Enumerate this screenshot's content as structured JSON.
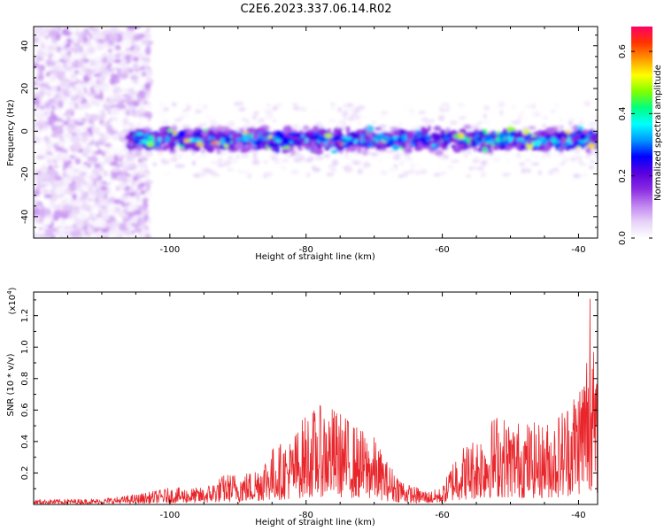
{
  "title": "C2E6.2023.337.06.14.R02",
  "chart_data": [
    {
      "type": "heatmap",
      "xlabel": "Height of straight line (km)",
      "ylabel": "Frequency (Hz)",
      "xlim": [
        -120,
        -37.2
      ],
      "ylim": [
        -50,
        49
      ],
      "xticks": [
        -100,
        -80,
        -60,
        -40
      ],
      "xtick_labels": [
        "-100",
        "-80",
        "-60",
        "-40"
      ],
      "yticks": [
        -40,
        -20,
        0,
        20,
        40
      ],
      "ytick_labels": [
        "-40",
        "-20",
        "0",
        "20",
        "40"
      ],
      "band_center_hz": -4,
      "band_halfwidth_hz": 7,
      "band_start_km": -106,
      "noise_region_km": [
        -120,
        -103
      ],
      "colorbar": {
        "label": "Normalized spectral amplitude",
        "range": [
          0.0,
          0.68
        ],
        "ticks": [
          0.0,
          0.2,
          0.4,
          0.6
        ],
        "tick_labels": [
          "0.0",
          "0.2",
          "0.4",
          "0.6"
        ],
        "colors": [
          "#ffffff",
          "#e6d2f8",
          "#c084ef",
          "#8a2be2",
          "#5a00e0",
          "#0000ff",
          "#0096ff",
          "#00ffff",
          "#00ff80",
          "#80ff00",
          "#ffff00",
          "#ff9900",
          "#ff3300",
          "#ff0066"
        ]
      },
      "grid": false
    },
    {
      "type": "line",
      "xlabel": "Height of straight line (km)",
      "ylabel": "SNR (10 * v/v)",
      "y_multiplier_label": "(x10",
      "y_multiplier_exp": "4",
      "y_multiplier_close": ")",
      "xlim": [
        -120,
        -37.2
      ],
      "ylim": [
        0,
        1.35
      ],
      "xticks": [
        -100,
        -80,
        -60,
        -40
      ],
      "xtick_labels": [
        "-100",
        "-80",
        "-60",
        "-40"
      ],
      "yticks": [
        0.2,
        0.4,
        0.6,
        0.8,
        1.0,
        1.2
      ],
      "ytick_labels": [
        "0.2",
        "0.4",
        "0.6",
        "0.8",
        "1.0",
        "1.2"
      ],
      "series_color": "#e8262b",
      "envelope": {
        "x": [
          -120,
          -110,
          -105,
          -100,
          -95,
          -92,
          -88,
          -85,
          -82,
          -80,
          -77,
          -75,
          -72,
          -70,
          -68,
          -65,
          -62,
          -60,
          -58,
          -56,
          -54,
          -52,
          -50,
          -48,
          -46,
          -44,
          -42,
          -40,
          -39,
          -38.5,
          -38,
          -37.2
        ],
        "y": [
          0.03,
          0.035,
          0.06,
          0.1,
          0.1,
          0.18,
          0.2,
          0.34,
          0.4,
          0.55,
          0.6,
          0.55,
          0.45,
          0.4,
          0.25,
          0.12,
          0.08,
          0.1,
          0.32,
          0.38,
          0.45,
          0.55,
          0.5,
          0.5,
          0.48,
          0.5,
          0.6,
          0.75,
          0.9,
          1.1,
          1.0,
          0.7
        ]
      },
      "grid": false
    }
  ]
}
